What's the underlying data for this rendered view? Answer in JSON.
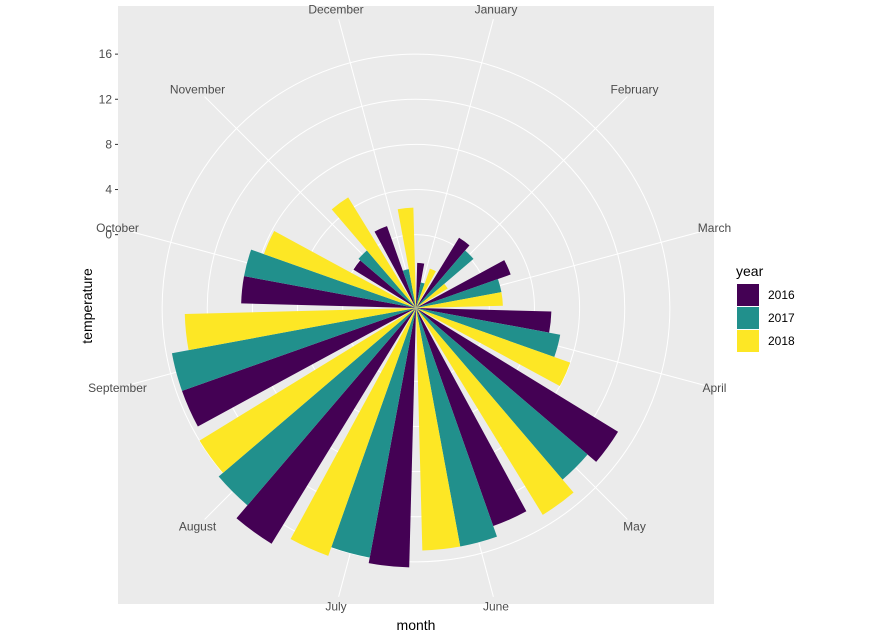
{
  "chart_data": {
    "type": "bar",
    "coordinates": "polar",
    "xlabel": "month",
    "ylabel": "temperature",
    "categories": [
      "January",
      "February",
      "March",
      "April",
      "May",
      "June",
      "July",
      "August",
      "September",
      "October",
      "November",
      "December"
    ],
    "series": [
      {
        "name": "2016",
        "color": "#440154",
        "values": [
          -2.5,
          0.8,
          2.4,
          5.5,
          14.5,
          14.0,
          16.5,
          18.0,
          15.5,
          9.0,
          0.0,
          1.2
        ]
      },
      {
        "name": "2017",
        "color": "#21908C",
        "values": [
          -4.2,
          0.2,
          1.2,
          6.5,
          13.5,
          15.0,
          16.0,
          16.5,
          15.5,
          9.0,
          0.2,
          -3.0
        ]
      },
      {
        "name": "2018",
        "color": "#FDE725",
        "values": [
          -2.8,
          -3.2,
          1.2,
          8.0,
          15.0,
          15.0,
          16.8,
          16.0,
          14.0,
          7.8,
          5.0,
          2.4
        ]
      }
    ],
    "yticks": [
      0,
      4,
      8,
      12,
      16
    ],
    "ylim": [
      -6.5,
      20
    ],
    "grid": true,
    "legend": {
      "title": "year",
      "position": "right"
    }
  }
}
